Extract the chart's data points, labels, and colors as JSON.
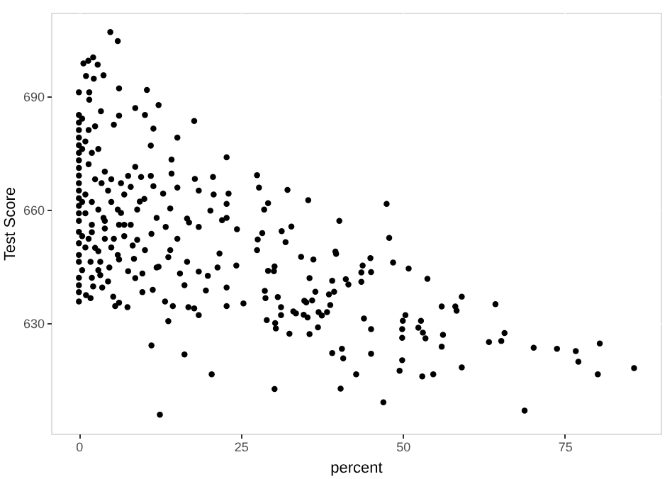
{
  "chart_data": {
    "type": "scatter",
    "xlabel": "percent",
    "ylabel": "Test Score",
    "xlim": [
      -4.3,
      89.8
    ],
    "ylim": [
      600.8,
      712
    ],
    "xticks": [
      0,
      25,
      50,
      75
    ],
    "yticks": [
      630,
      660,
      690
    ],
    "grid": true,
    "series": [
      {
        "color": "#000000",
        "x": [
          4.85,
          6.0,
          1.45,
          0.7,
          2.2,
          2.9,
          1.1,
          2.3,
          3.8,
          0,
          1.6,
          1.6,
          6.2,
          10.5,
          12.3,
          8.7,
          10.2,
          3.4,
          6.2,
          17.8,
          11.5,
          5.4,
          15.2,
          11.1,
          22.8,
          14.3,
          8.7,
          14.3,
          17.9,
          20.7,
          11.1,
          7.6,
          9.6,
          15.2,
          18.5,
          20.8,
          23.1,
          22.8,
          13,
          11.5,
          9.4,
          10.1,
          14.1,
          20.3,
          16.7,
          22.8,
          12,
          6.5,
          3.8,
          0,
          0,
          0,
          0,
          0,
          0,
          0,
          0,
          0,
          0,
          0,
          0,
          0,
          0,
          0,
          0.5,
          0.5,
          0.5,
          1.5,
          2.5,
          1,
          2,
          3,
          1.5,
          4,
          2.5,
          3.5,
          5,
          4.5,
          1,
          2,
          3,
          5,
          6,
          7,
          8,
          4,
          2,
          1,
          6.5,
          7,
          9,
          0.5,
          1,
          0,
          0.5,
          0,
          2,
          3,
          4,
          5,
          7,
          8,
          9,
          6,
          8.5,
          3,
          2,
          4.5,
          0,
          0,
          0,
          1.1,
          1.8,
          3.6,
          5.3,
          5.6,
          6.2,
          7.5,
          11.4,
          13.3,
          14.5,
          13.8,
          11.2,
          16.3,
          20.5,
          12.5,
          16.9,
          17.8,
          18.5,
          22.8,
          25.4,
          22.8,
          24.3,
          21.7,
          21.4,
          19.6,
          16.3,
          15.6,
          16.7,
          18.5,
          19.9,
          12,
          9.8,
          9.8,
          8.7,
          7.6,
          6.2,
          4.7,
          3.3,
          2.2,
          3.3,
          1.8,
          0,
          0,
          0,
          1.5,
          2.5,
          4,
          5.4,
          6.2,
          8.3,
          10.2,
          11.2,
          13.4,
          14.1,
          15.2,
          17,
          18.5,
          22.1,
          24.4,
          12.3,
          13.8,
          27.5,
          27.8,
          29.2,
          28.6,
          32.2,
          35.4,
          28.3,
          27.6,
          27.5,
          31.3,
          31.9,
          32.8,
          40.2,
          47.5,
          47.9,
          48.5,
          50.9,
          53.8,
          56,
          56.2,
          56,
          39.6,
          39.7,
          34.3,
          36.2,
          29.2,
          30.2,
          30.1,
          35.6,
          28.7,
          28.8,
          30.7,
          29,
          30.3,
          30.4,
          31.2,
          31.2,
          32.5,
          33.1,
          33.5,
          34.7,
          35.3,
          34.8,
          35.1,
          36,
          36.5,
          35.6,
          36.9,
          37,
          37.5,
          38.3,
          38.8,
          38.6,
          39.4,
          39.1,
          41.2,
          41.6,
          43.6,
          43.6,
          43.8,
          45,
          45.1,
          44,
          45.1,
          39.1,
          40.6,
          40.8,
          42.8,
          45.1,
          40.4,
          47,
          30.2,
          50.4,
          50,
          49.9,
          49.9,
          49.9,
          49.5,
          52.8,
          52.4,
          53.1,
          53.5,
          53,
          54.7,
          59.1,
          58.1,
          58.3,
          64.3,
          59.1,
          63.3,
          65.2,
          65.7,
          68.8,
          70.2,
          73.8,
          76.7,
          77.1,
          80.4,
          80.1,
          85.7
        ],
        "values": [
          706.9,
          704.5,
          699.3,
          698.6,
          700.2,
          698.3,
          695.3,
          694.6,
          695.5,
          691,
          691,
          689,
          692,
          691.6,
          687.6,
          686.8,
          685,
          686,
          684.8,
          683.4,
          681.4,
          682.4,
          679,
          676.9,
          673.8,
          673.2,
          671.3,
          669.5,
          668.1,
          668.6,
          668.9,
          668.9,
          668.6,
          665.8,
          665,
          664,
          664.2,
          661.5,
          664.2,
          666.2,
          662.1,
          662.8,
          660.3,
          659.7,
          657.6,
          657.8,
          657.8,
          659.1,
          657.8,
          685,
          683,
          681,
          679,
          677,
          675,
          673,
          671,
          669,
          667,
          665,
          663,
          661,
          659,
          657,
          684,
          676,
          662,
          681,
          682,
          678,
          675,
          676,
          672,
          670,
          668,
          667,
          668,
          665,
          664,
          662,
          660,
          662,
          660,
          664,
          666,
          657,
          656,
          659,
          667,
          656,
          660,
          653,
          650,
          648,
          644,
          642,
          654,
          649,
          655,
          650,
          653,
          656,
          652,
          648,
          647,
          644,
          642,
          641,
          640,
          635.7,
          638.2,
          637.4,
          636.6,
          639.4,
          637,
          634.5,
          635.4,
          634.2,
          638.8,
          635.7,
          634.5,
          630.5,
          624.1,
          621.7,
          616.5,
          605.8,
          634.2,
          633.9,
          632.1,
          634.5,
          635.2,
          639.4,
          645.2,
          648.4,
          644.7,
          638.6,
          640,
          643.1,
          646.2,
          643.6,
          642.5,
          644.7,
          643.1,
          638.2,
          641.9,
          643.7,
          646.8,
          644.7,
          646.2,
          639.7,
          642.7,
          646.2,
          646.2,
          651.1,
          654.1,
          652.3,
          649.9,
          652.3,
          652.3,
          656,
          650.5,
          649.3,
          653.6,
          655.4,
          649.3,
          652.3,
          656.6,
          655.4,
          657.2,
          654.8,
          644.9,
          647.4,
          669.1,
          665.8,
          661.7,
          660,
          665.2,
          662.5,
          653.8,
          652.1,
          649.3,
          654.3,
          651.4,
          655.5,
          657,
          661.5,
          652.5,
          646,
          644.4,
          641.7,
          634.4,
          626.9,
          623.8,
          648.9,
          648.3,
          647.5,
          646.8,
          643.8,
          645,
          643.7,
          641.9,
          638.5,
          636.6,
          636.9,
          630.8,
          630,
          628.6,
          634.2,
          632.1,
          627.2,
          633.1,
          632.6,
          632.2,
          631.5,
          635.9,
          635.5,
          636,
          638.3,
          627.1,
          628.9,
          632.9,
          632,
          632.9,
          634.8,
          637.6,
          638.3,
          641.2,
          641.6,
          640.2,
          640.9,
          643.4,
          645.2,
          647.2,
          643.5,
          631.2,
          628.4,
          622.1,
          623.2,
          620.7,
          616.5,
          621.9,
          612.7,
          609.1,
          612.6,
          632.1,
          630.6,
          628.4,
          626.1,
          620.2,
          617.4,
          630.6,
          628.8,
          627.5,
          626,
          615.9,
          616.5,
          637,
          634.4,
          633.3,
          635,
          618.3,
          625,
          625.3,
          627.4,
          606.9,
          623.5,
          623.2,
          622.6,
          619.8,
          624.6,
          616.5,
          618.1
        ]
      }
    ]
  }
}
